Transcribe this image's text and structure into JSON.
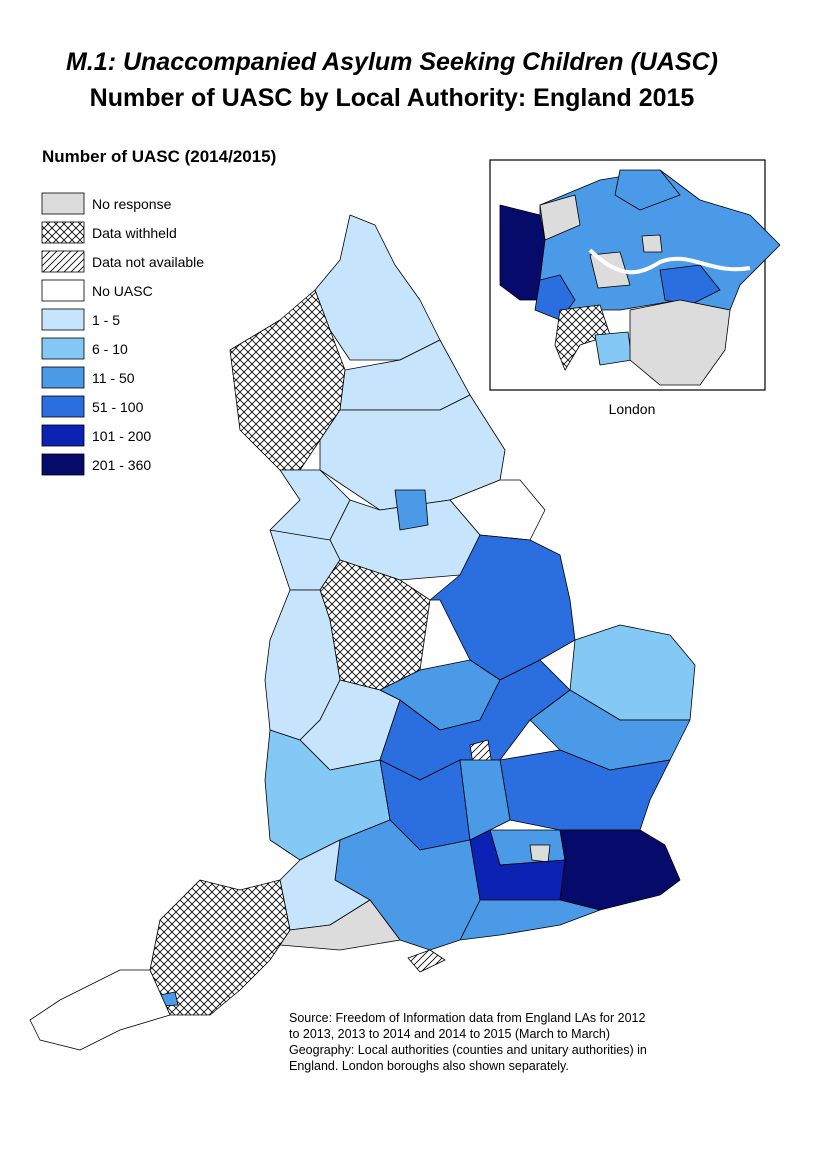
{
  "title": [
    "M.1: Unaccompanied Asylum Seeking Children (UASC)",
    "Number of UASC by Local Authority: England 2015"
  ],
  "legend": {
    "title": "Number of UASC (2014/2015)",
    "items": [
      "No response",
      "Data withheld",
      "Data not available",
      "No UASC",
      "1 - 5",
      "6 - 10",
      "11 - 50",
      "51 - 100",
      "101 - 200",
      "201 - 360"
    ]
  },
  "inset": {
    "label": "London"
  },
  "source": [
    "Source: Freedom of Information data from England LAs for 2012",
    "to 2013, 2013 to 2014 and 2014 to 2015 (March to March)",
    "Geography: Local authorities (counties and unitary authorities) in",
    "England. London boroughs also shown separately."
  ]
}
